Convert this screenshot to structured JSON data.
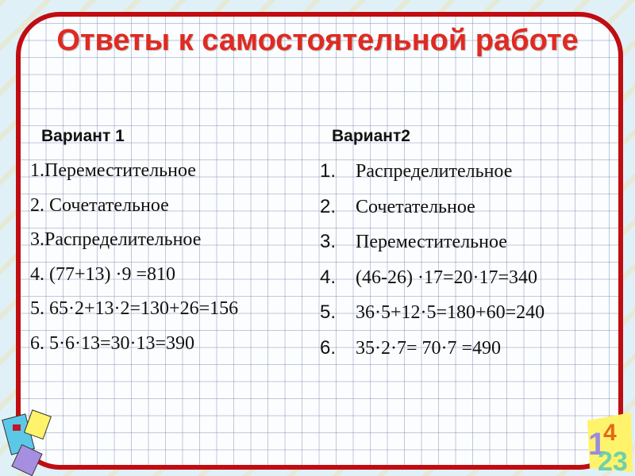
{
  "title": "Ответы к самостоятельной работе",
  "variant1": {
    "heading": "Вариант 1",
    "items": [
      "1.Переместительное",
      "2. Сочетательное",
      "3.Распределительное",
      "4. (77+13) ·9 =810",
      "5. 65·2+13·2=130+26=156",
      "6. 5·6·13=30·13=390"
    ]
  },
  "variant2": {
    "heading": "Вариант2",
    "items": [
      {
        "num": "1.",
        "text": "Распределительное"
      },
      {
        "num": "2.",
        "text": "Сочетательное"
      },
      {
        "num": "3.",
        "text": "Переместительное"
      },
      {
        "num": "4.",
        "text": "(46-26) ·17=20·17=340"
      },
      {
        "num": "5.",
        "text": "36·5+12·5=180+60=240"
      },
      {
        "num": "6.",
        "text": "35·2·7= 70·7 =490"
      }
    ]
  },
  "colors": {
    "frame": "#c00d12",
    "title": "#e02a22"
  }
}
